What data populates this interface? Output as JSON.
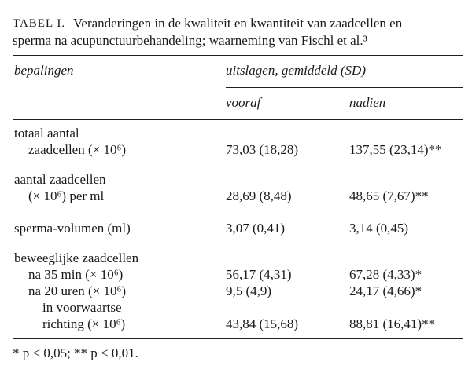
{
  "caption": {
    "label": "TABEL I.",
    "text": [
      "Veranderingen in de kwaliteit en kwantiteit van zaadcellen en",
      "sperma na acupunctuurbehandeling; waarneming van Fischl et al.³"
    ]
  },
  "header": {
    "label_column": "bepalingen",
    "group": "uitslagen, gemiddeld (SD)",
    "columns": [
      "vooraf",
      "nadien"
    ]
  },
  "rows": [
    {
      "label": [
        "totaal aantal",
        "zaadcellen (× 10⁶)"
      ],
      "values": [
        "73,03 (18,28)",
        "137,55 (23,14)**"
      ]
    },
    {
      "label": [
        "aantal zaadcellen",
        "(× 10⁶) per ml"
      ],
      "values": [
        "28,69 (8,48)",
        "48,65 (7,67)**"
      ]
    },
    {
      "label": [
        "sperma-volumen (ml)"
      ],
      "values": [
        "3,07 (0,41)",
        "3,14 (0,45)"
      ]
    },
    {
      "label": [
        "beweeglijke zaadcellen"
      ],
      "subrows": [
        {
          "label": [
            "na 35 min (× 10⁶)"
          ],
          "values": [
            "56,17 (4,31)",
            "67,28 (4,33)*"
          ]
        },
        {
          "label": [
            "na 20 uren (× 10⁶)"
          ],
          "values": [
            "9,5 (4,9)",
            "24,17 (4,66)*"
          ]
        },
        {
          "label": [
            "in voorwaartse",
            "richting (× 10⁶)"
          ],
          "values": [
            "43,84 (15,68)",
            "88,81 (16,41)**"
          ]
        }
      ]
    }
  ],
  "footnote": "* p < 0,05; ** p < 0,01."
}
